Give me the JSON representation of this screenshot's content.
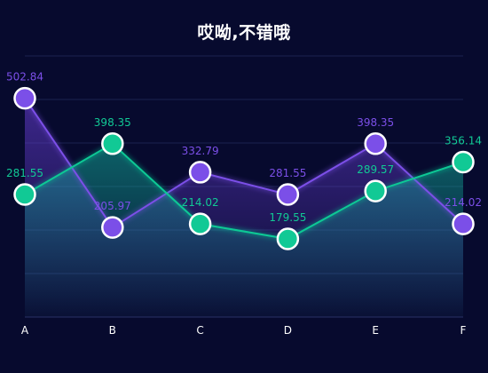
{
  "chart_data": {
    "type": "line",
    "title": "哎呦,不错哦",
    "categories": [
      "A",
      "B",
      "C",
      "D",
      "E",
      "F"
    ],
    "ylim": [
      0,
      600
    ],
    "grid": true,
    "series": [
      {
        "values": [
          502.84,
          205.97,
          332.79,
          281.55,
          398.35,
          214.02
        ],
        "color": "#7b4fe8"
      },
      {
        "values": [
          281.55,
          398.35,
          214.02,
          179.55,
          289.57,
          356.14
        ],
        "color": "#11c995"
      }
    ],
    "colors": {
      "background": "#070a2e",
      "grid": "#1b2250",
      "axis": "#2a3166",
      "marker_border": "#ffffff"
    }
  }
}
